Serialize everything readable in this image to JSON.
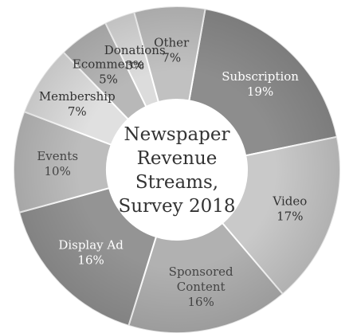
{
  "chart_data": {
    "type": "pie",
    "title_lines": [
      "Newspaper",
      "Revenue",
      "Streams,",
      "Survey 2018"
    ],
    "slices": [
      {
        "label": "Subscription",
        "value": 19,
        "value_label": "19%",
        "color": "#8d8d8d",
        "text_color": "#ffffff"
      },
      {
        "label": "Video",
        "value": 17,
        "value_label": "17%",
        "color": "#c9c9c9",
        "text_color": "#333333"
      },
      {
        "label": "Sponsored Content",
        "value": 16,
        "value_label": "16%",
        "color": "#b1b1b1",
        "text_color": "#444444"
      },
      {
        "label": "Display Ad",
        "value": 16,
        "value_label": "16%",
        "color": "#949494",
        "text_color": "#ffffff"
      },
      {
        "label": "Events",
        "value": 10,
        "value_label": "10%",
        "color": "#bdbdbd",
        "text_color": "#444444"
      },
      {
        "label": "Membership",
        "value": 7,
        "value_label": "7%",
        "color": "#e0e0e0",
        "text_color": "#333333"
      },
      {
        "label": "Ecommerce",
        "value": 5,
        "value_label": "5%",
        "color": "#b8b8b8",
        "text_color": "#333333"
      },
      {
        "label": "Donations",
        "value": 3,
        "value_label": "3%",
        "color": "#dcdcdc",
        "text_color": "#333333"
      },
      {
        "label": "Other",
        "value": 7,
        "value_label": "7%",
        "color": "#c1c1c1",
        "text_color": "#333333"
      }
    ]
  }
}
